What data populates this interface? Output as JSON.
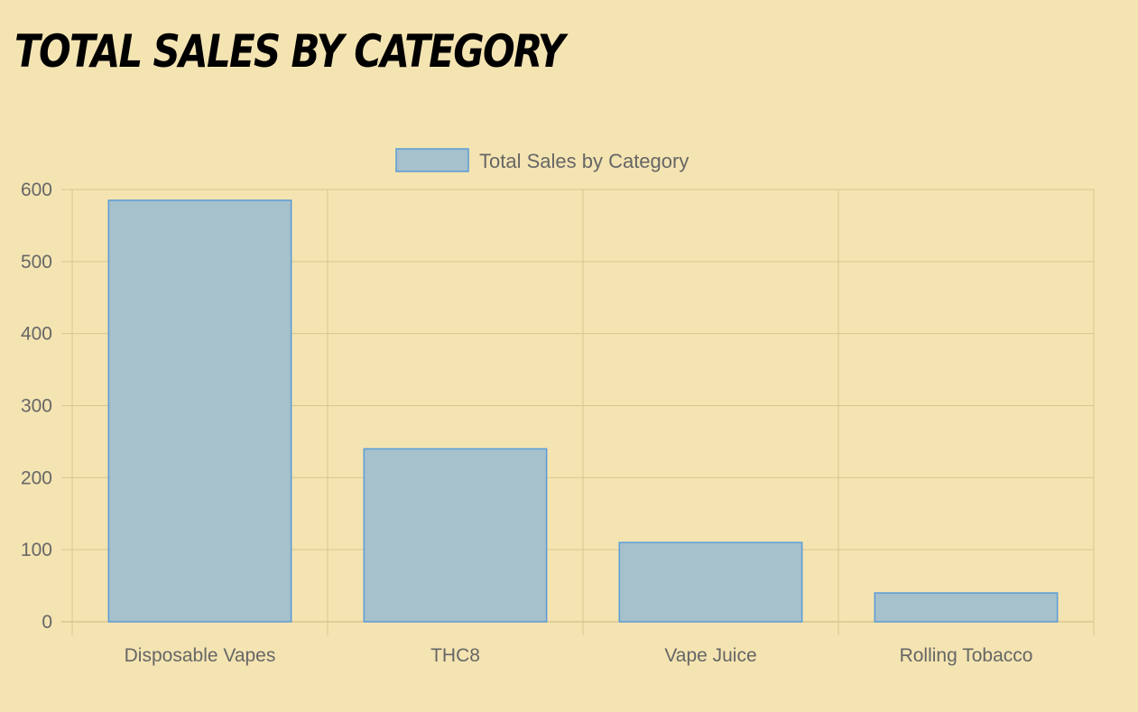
{
  "page": {
    "title": "Total Sales by Category"
  },
  "colors": {
    "background": "#f4e4b2",
    "bar_fill": "#a6c1cb",
    "bar_border": "#5a9bd8",
    "grid": "#d8c68e",
    "axis_text": "#666666"
  },
  "chart_data": {
    "type": "bar",
    "title": "",
    "xlabel": "",
    "ylabel": "",
    "categories": [
      "Disposable Vapes",
      "THC8",
      "Vape Juice",
      "Rolling Tobacco"
    ],
    "series": [
      {
        "name": "Total Sales by Category",
        "values": [
          585,
          240,
          110,
          40
        ]
      }
    ],
    "ylim": [
      0,
      600
    ],
    "yticks": [
      0,
      100,
      200,
      300,
      400,
      500,
      600
    ],
    "grid": true,
    "legend": "top-center"
  }
}
